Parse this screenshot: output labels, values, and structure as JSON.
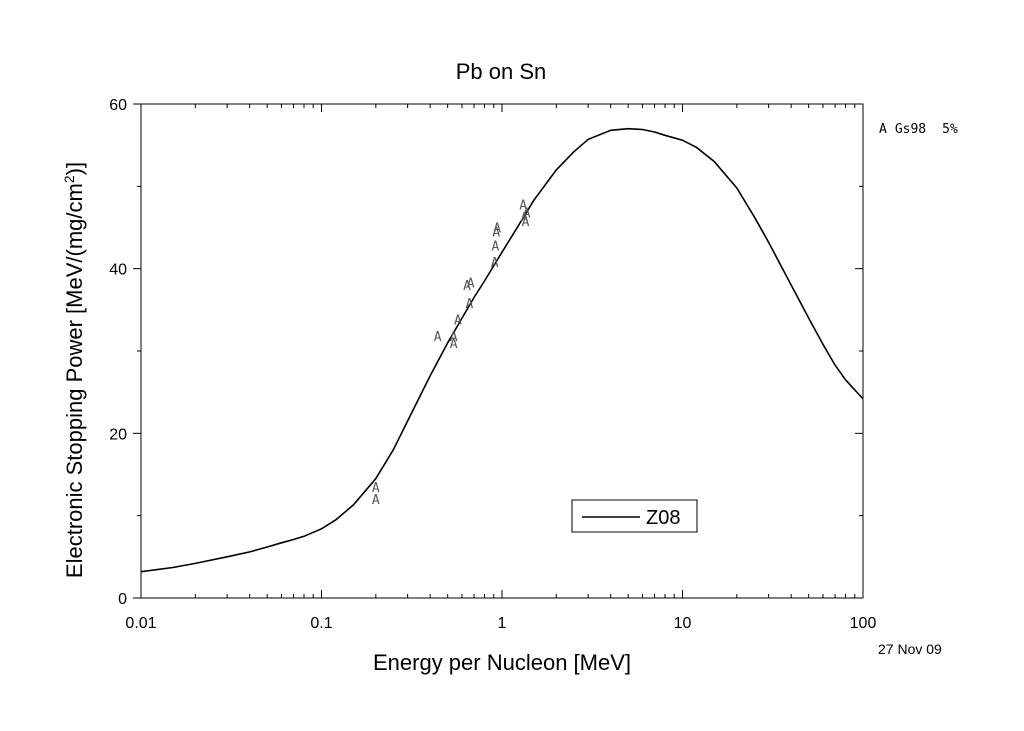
{
  "chart_data": {
    "type": "line",
    "title": "Pb on Sn",
    "xlabel": "Energy per Nucleon [MeV]",
    "ylabel_main": "Electronic Stopping Power [MeV/(mg/cm",
    "ylabel_sup": "2",
    "ylabel_tail": ")]",
    "xscale": "log",
    "xlim": [
      0.01,
      100
    ],
    "ylim": [
      0,
      60
    ],
    "xticks": [
      {
        "value": 0.01,
        "label": "0.01"
      },
      {
        "value": 0.1,
        "label": "0.1"
      },
      {
        "value": 1,
        "label": "1"
      },
      {
        "value": 10,
        "label": "10"
      },
      {
        "value": 100,
        "label": "100"
      }
    ],
    "yticks": [
      {
        "value": 0,
        "label": "0"
      },
      {
        "value": 20,
        "label": "20"
      },
      {
        "value": 40,
        "label": "40"
      },
      {
        "value": 60,
        "label": "60"
      }
    ],
    "grid": false,
    "legend_position": "lower-right",
    "series": [
      {
        "name": "Z08",
        "kind": "line",
        "color": "#000000",
        "x": [
          0.01,
          0.015,
          0.02,
          0.03,
          0.04,
          0.05,
          0.06,
          0.07,
          0.08,
          0.1,
          0.12,
          0.15,
          0.2,
          0.25,
          0.3,
          0.4,
          0.5,
          0.6,
          0.7,
          0.8,
          1.0,
          1.2,
          1.5,
          2.0,
          2.5,
          3.0,
          4.0,
          5.0,
          6.0,
          7.0,
          8.0,
          10.0,
          12.0,
          15.0,
          20.0,
          25.0,
          30.0,
          40.0,
          50.0,
          60.0,
          70.0,
          80.0,
          100.0
        ],
        "y": [
          3.2,
          3.7,
          4.2,
          5.0,
          5.6,
          6.2,
          6.7,
          7.1,
          7.5,
          8.4,
          9.5,
          11.3,
          14.5,
          18.0,
          21.5,
          27.0,
          31.0,
          34.0,
          36.5,
          38.5,
          42.0,
          44.8,
          48.3,
          52.0,
          54.2,
          55.7,
          56.8,
          57.0,
          56.9,
          56.6,
          56.2,
          55.6,
          54.7,
          53.0,
          49.8,
          46.3,
          43.2,
          38.0,
          34.0,
          30.8,
          28.3,
          26.5,
          24.2
        ]
      },
      {
        "name": "Gs98",
        "kind": "points",
        "marker": "A",
        "x": [
          0.2,
          0.2,
          0.44,
          0.54,
          0.54,
          0.57,
          0.64,
          0.66,
          0.67,
          0.91,
          0.92,
          0.93,
          0.94,
          1.31,
          1.33,
          1.35,
          1.37
        ],
        "y": [
          13.5,
          12.0,
          31.8,
          31.8,
          31.0,
          33.8,
          38.0,
          35.8,
          38.3,
          40.8,
          42.8,
          44.5,
          45.0,
          47.8,
          46.3,
          45.8,
          46.8
        ]
      }
    ],
    "legend_entries": [
      {
        "label": "Z08"
      }
    ],
    "side_note": {
      "marker": "A",
      "name": "Gs98",
      "error": "5%"
    },
    "date": "27 Nov 09"
  }
}
